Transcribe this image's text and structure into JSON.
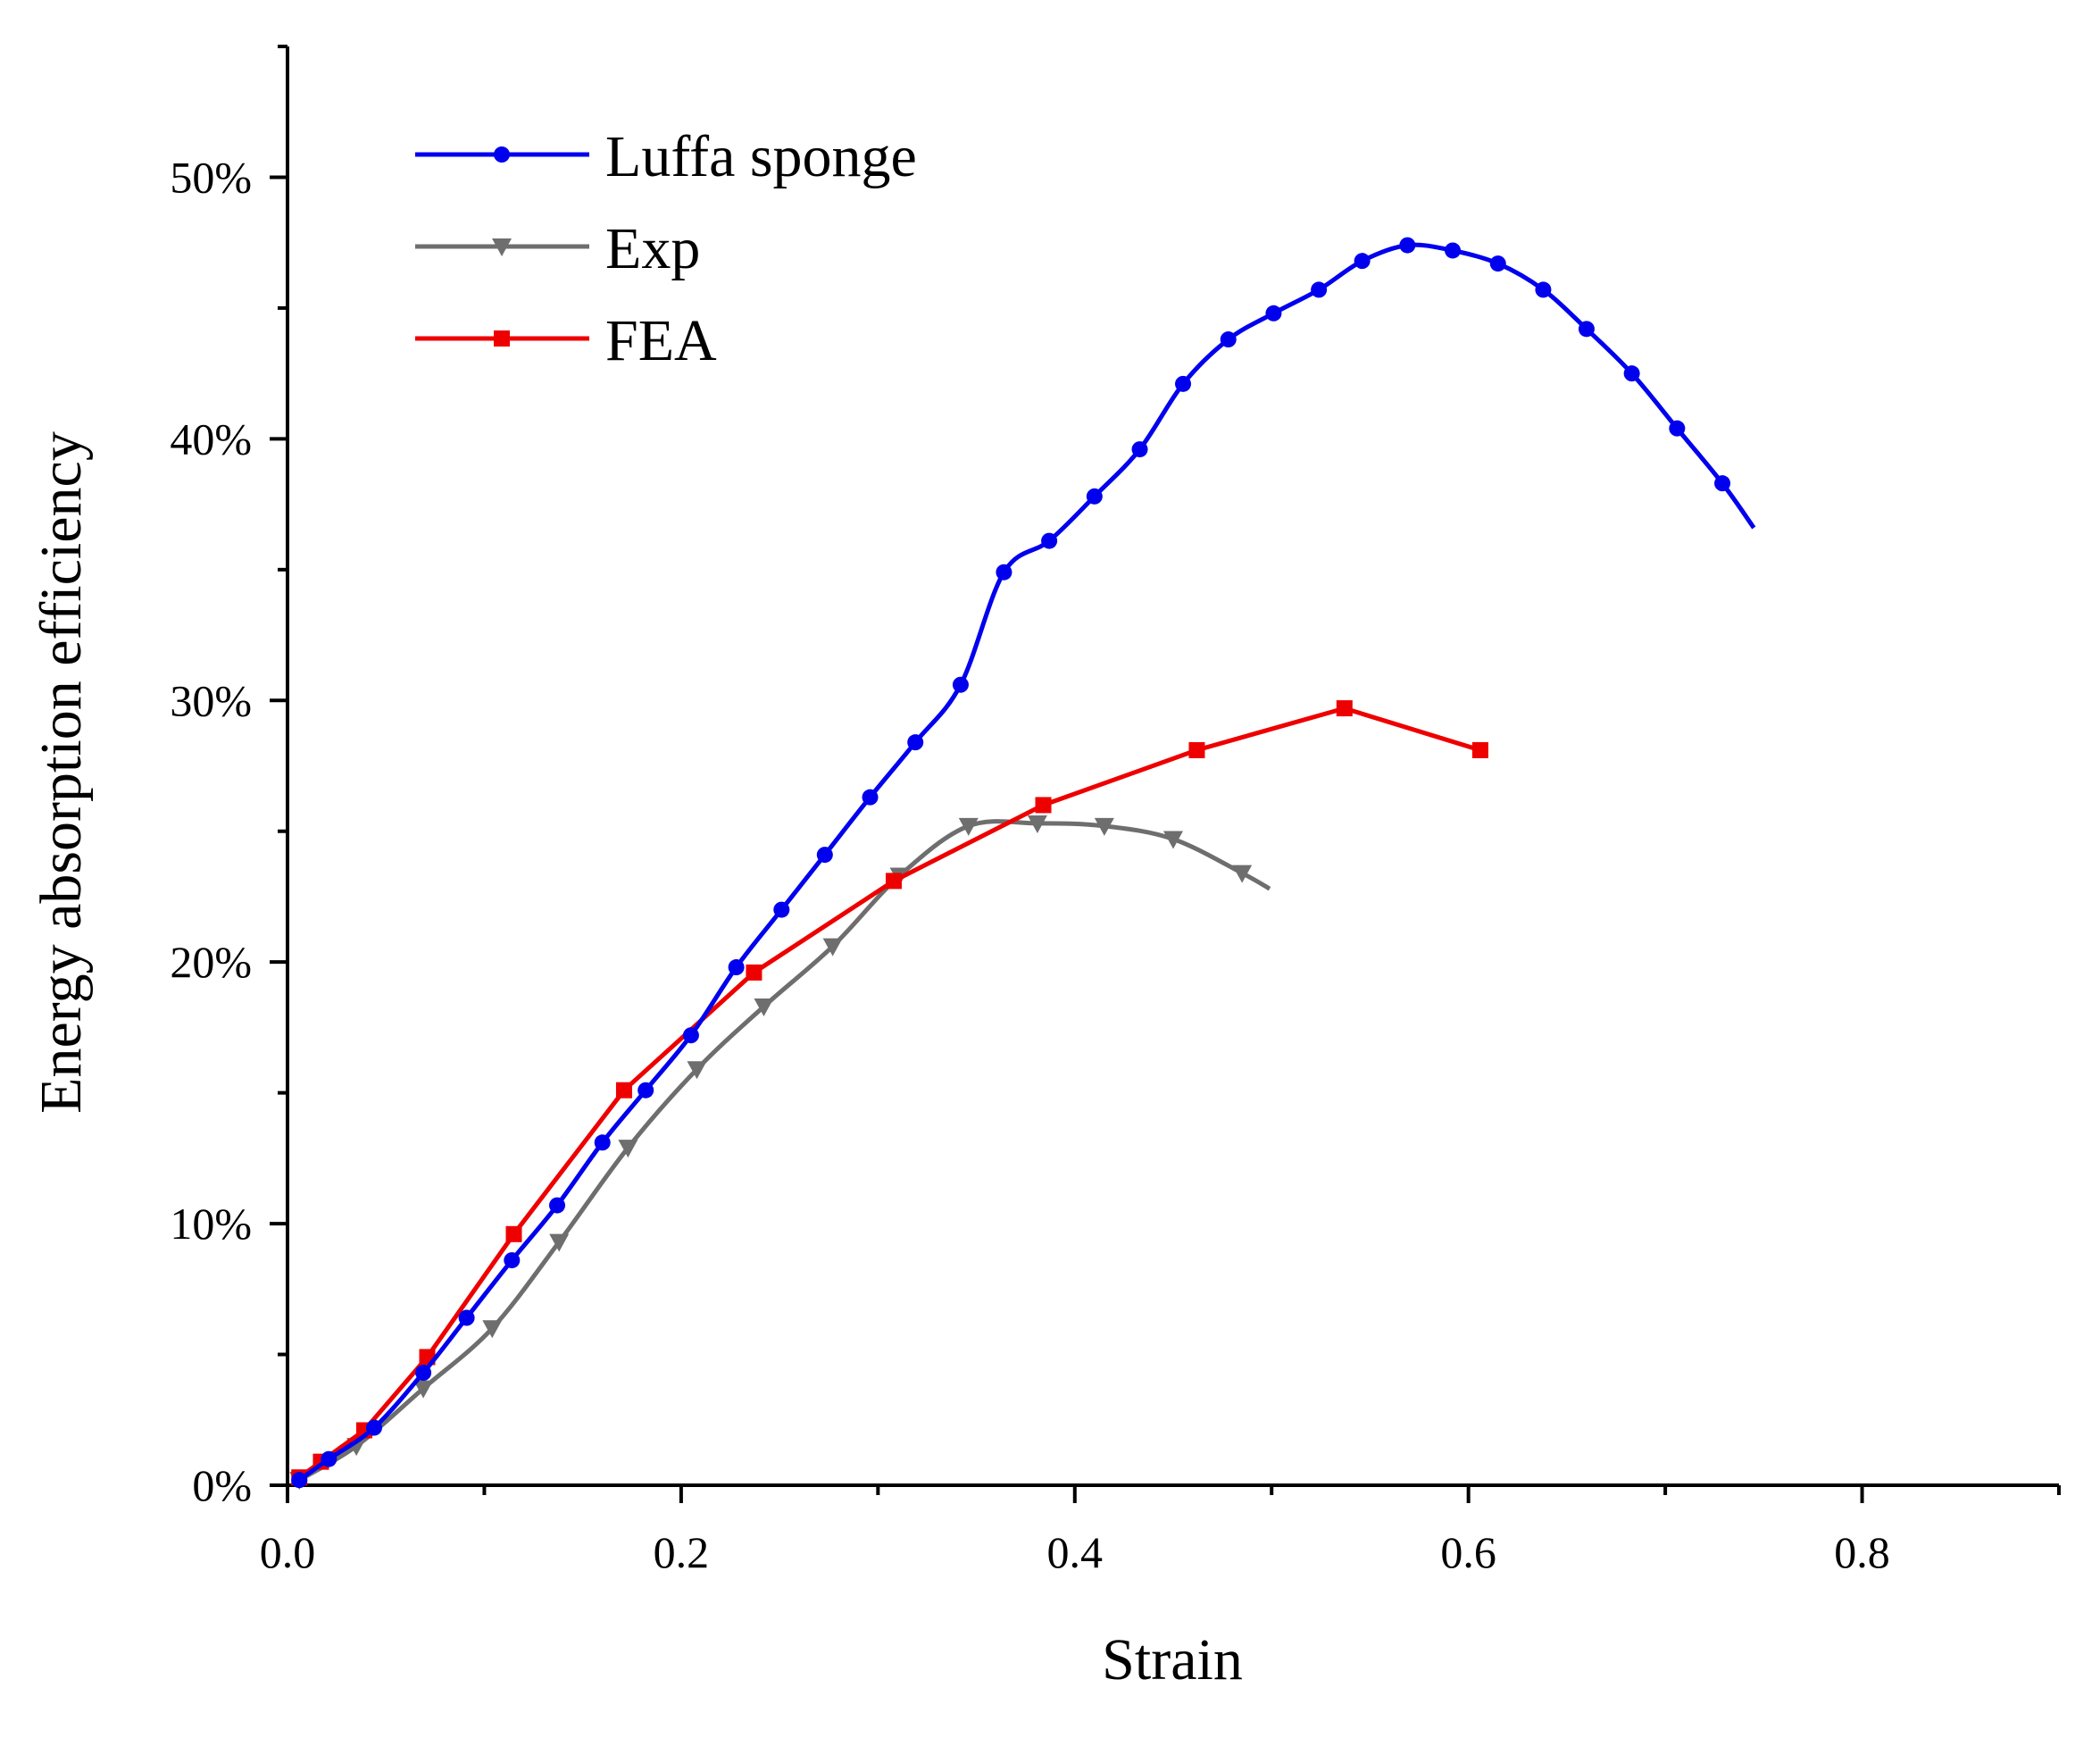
{
  "chart_data": {
    "type": "line",
    "title": "",
    "xlabel": "Strain",
    "ylabel": "Energy absorption efficiency",
    "xlim": [
      0,
      0.9
    ],
    "ylim": [
      0,
      55
    ],
    "xticks": [
      0.0,
      0.2,
      0.4,
      0.6,
      0.8
    ],
    "xtick_labels": [
      "0.0",
      "0.2",
      "0.4",
      "0.6",
      "0.8"
    ],
    "yticks": [
      0,
      10,
      20,
      30,
      40,
      50
    ],
    "ytick_labels": [
      "0%",
      "10%",
      "20%",
      "30%",
      "40%",
      "50%"
    ],
    "legend_position": "top-left",
    "series": [
      {
        "name": "Luffa sponge",
        "color": "#0000ee",
        "marker": "circle",
        "x": [
          0.006,
          0.021,
          0.044,
          0.069,
          0.091,
          0.114,
          0.137,
          0.16,
          0.182,
          0.205,
          0.228,
          0.251,
          0.273,
          0.296,
          0.319,
          0.342,
          0.364,
          0.387,
          0.41,
          0.433,
          0.455,
          0.478,
          0.501,
          0.524,
          0.546,
          0.569,
          0.592,
          0.615,
          0.638,
          0.66,
          0.683,
          0.706,
          0.729
        ],
        "y": [
          0.2,
          1.0,
          2.2,
          4.3,
          6.4,
          8.6,
          10.7,
          13.1,
          15.1,
          17.2,
          19.8,
          22.0,
          24.1,
          26.3,
          28.4,
          30.6,
          34.9,
          36.1,
          37.8,
          39.6,
          42.1,
          43.8,
          44.8,
          45.7,
          46.8,
          47.4,
          47.2,
          46.7,
          45.7,
          44.2,
          42.5,
          40.4,
          38.3
        ],
        "end": [
          0.745,
          36.6
        ]
      },
      {
        "name": "Exp",
        "color": "#6e6e6e",
        "marker": "triangle-down",
        "x": [
          0.006,
          0.035,
          0.069,
          0.104,
          0.138,
          0.173,
          0.208,
          0.242,
          0.277,
          0.311,
          0.346,
          0.381,
          0.415,
          0.45,
          0.485
        ],
        "y": [
          0.2,
          1.5,
          3.7,
          6.0,
          9.3,
          12.9,
          15.9,
          18.3,
          20.6,
          23.3,
          25.2,
          25.3,
          25.2,
          24.7,
          23.4
        ],
        "end": [
          0.499,
          22.8
        ]
      },
      {
        "name": "FEA",
        "color": "#ee0000",
        "marker": "square",
        "x": [
          0.006,
          0.017,
          0.039,
          0.071,
          0.115,
          0.171,
          0.237,
          0.308,
          0.384,
          0.462,
          0.537,
          0.606
        ],
        "y": [
          0.3,
          0.9,
          2.1,
          4.9,
          9.6,
          15.1,
          19.6,
          23.1,
          26.0,
          28.1,
          29.7,
          28.1
        ]
      }
    ]
  }
}
